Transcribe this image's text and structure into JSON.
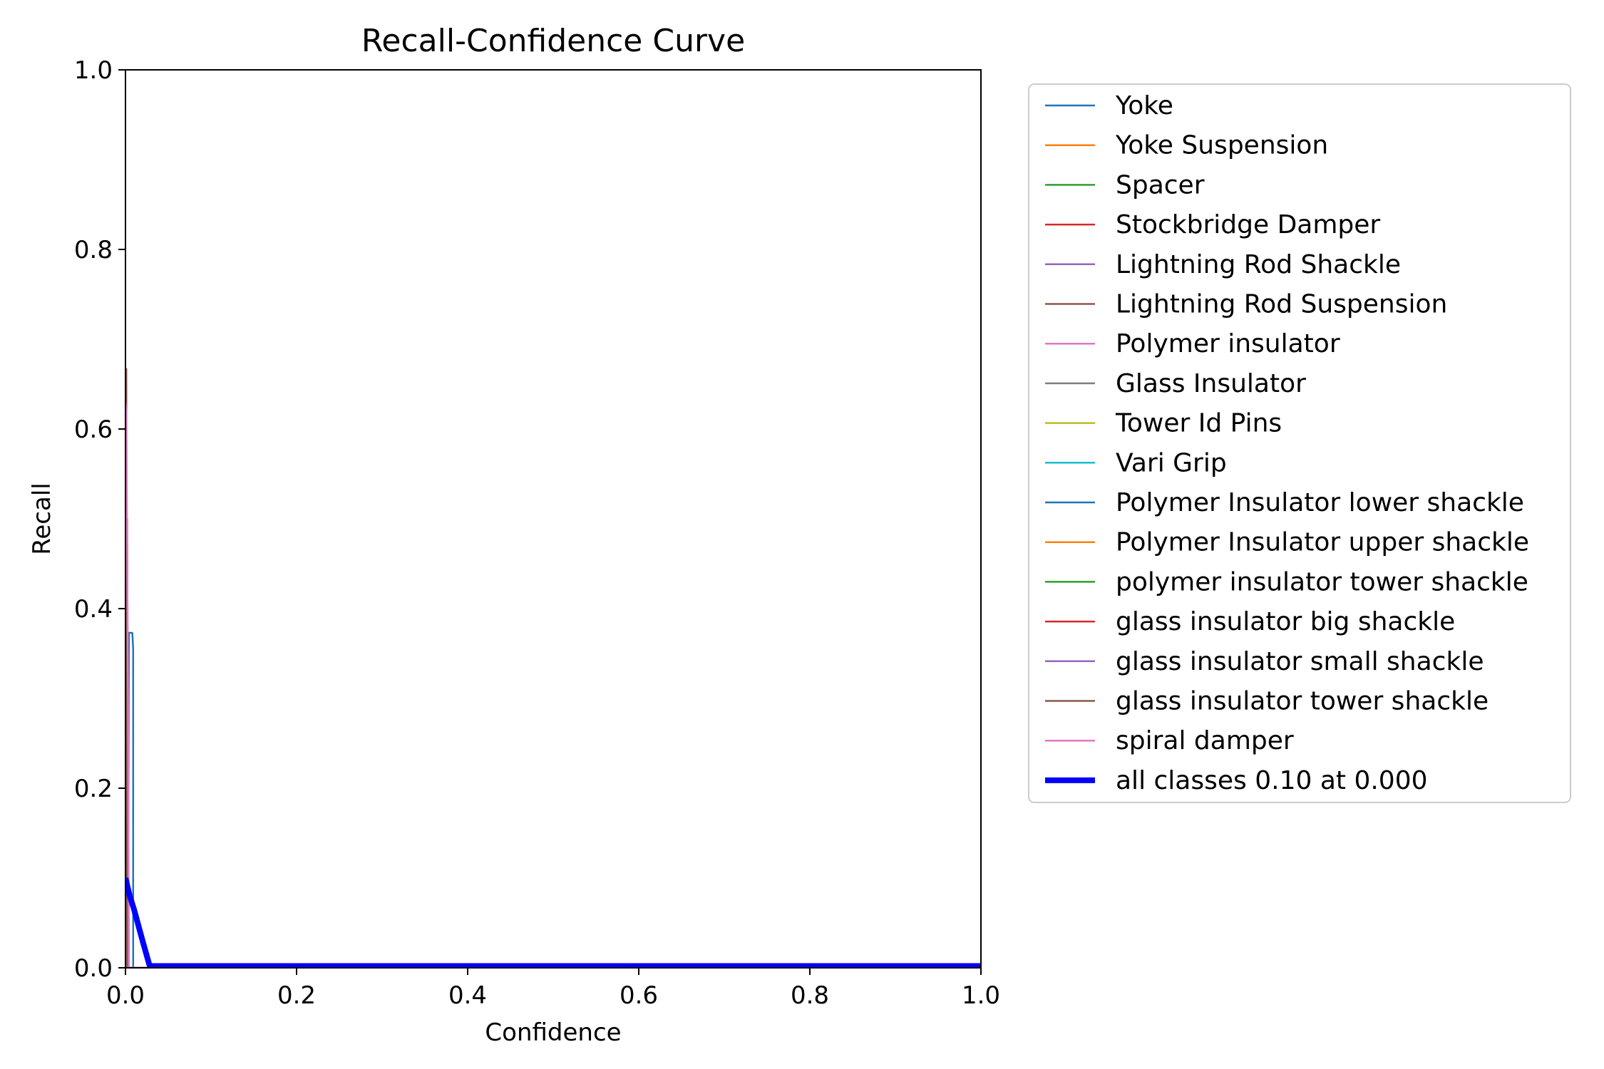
{
  "chart_data": {
    "type": "line",
    "title": "Recall-Confidence Curve",
    "xlabel": "Confidence",
    "ylabel": "Recall",
    "xlim": [
      0,
      1
    ],
    "ylim": [
      0,
      1
    ],
    "xticks": [
      "0.0",
      "0.2",
      "0.4",
      "0.6",
      "0.8",
      "1.0"
    ],
    "yticks": [
      "0.0",
      "0.2",
      "0.4",
      "0.6",
      "0.8",
      "1.0"
    ],
    "grid": false,
    "legend_position": "outside right",
    "series": [
      {
        "name": "Yoke",
        "color": "#1f77b4",
        "width": 1,
        "x": [
          0,
          0.003,
          0.004,
          0.008,
          0.009,
          0.009,
          0.01,
          1
        ],
        "y": [
          0,
          0,
          0.373,
          0.373,
          0.355,
          0,
          0,
          0
        ]
      },
      {
        "name": "Yoke Suspension",
        "color": "#ff7f0e",
        "width": 1,
        "x": [
          0,
          1
        ],
        "y": [
          0,
          0
        ]
      },
      {
        "name": "Spacer",
        "color": "#2ca02c",
        "width": 1,
        "x": [
          0,
          1
        ],
        "y": [
          0,
          0
        ]
      },
      {
        "name": "Stockbridge Damper",
        "color": "#d62728",
        "width": 1,
        "x": [
          0,
          0.002,
          0.003,
          0.004,
          1
        ],
        "y": [
          0,
          0.5,
          0.2,
          0,
          0
        ]
      },
      {
        "name": "Lightning Rod Shackle",
        "color": "#9467bd",
        "width": 1,
        "x": [
          0,
          1
        ],
        "y": [
          0,
          0
        ]
      },
      {
        "name": "Lightning Rod Suspension",
        "color": "#8c564b",
        "width": 1,
        "x": [
          0,
          0.001,
          0.002,
          1
        ],
        "y": [
          0.667,
          0.667,
          0,
          0
        ]
      },
      {
        "name": "Polymer insulator",
        "color": "#e377c2",
        "width": 1,
        "x": [
          0,
          0.001,
          0.003,
          0.004,
          1
        ],
        "y": [
          0.63,
          0.62,
          0.3,
          0,
          0
        ]
      },
      {
        "name": "Glass Insulator",
        "color": "#7f7f7f",
        "width": 1,
        "x": [
          0,
          1
        ],
        "y": [
          0,
          0
        ]
      },
      {
        "name": "Tower Id Pins",
        "color": "#bcbd22",
        "width": 1,
        "x": [
          0,
          1
        ],
        "y": [
          0,
          0
        ]
      },
      {
        "name": "Vari Grip",
        "color": "#17becf",
        "width": 1,
        "x": [
          0,
          1
        ],
        "y": [
          0,
          0
        ]
      },
      {
        "name": "Polymer Insulator lower shackle",
        "color": "#1f77b4",
        "width": 1,
        "x": [
          0,
          1
        ],
        "y": [
          0,
          0
        ]
      },
      {
        "name": "Polymer Insulator upper shackle",
        "color": "#ff7f0e",
        "width": 1,
        "x": [
          0,
          1
        ],
        "y": [
          0,
          0
        ]
      },
      {
        "name": "polymer insulator tower shackle",
        "color": "#2ca02c",
        "width": 1,
        "x": [
          0,
          1
        ],
        "y": [
          0,
          0
        ]
      },
      {
        "name": "glass insulator big shackle",
        "color": "#d62728",
        "width": 1,
        "x": [
          0,
          1
        ],
        "y": [
          0,
          0
        ]
      },
      {
        "name": "glass insulator small shackle",
        "color": "#9467bd",
        "width": 1,
        "x": [
          0,
          1
        ],
        "y": [
          0,
          0
        ]
      },
      {
        "name": "glass insulator tower shackle",
        "color": "#8c564b",
        "width": 1,
        "x": [
          0,
          1
        ],
        "y": [
          0,
          0
        ]
      },
      {
        "name": "spiral damper",
        "color": "#e377c2",
        "width": 1,
        "x": [
          0,
          1
        ],
        "y": [
          0,
          0
        ]
      },
      {
        "name": "all classes 0.10 at 0.000",
        "color": "#0000ff",
        "width": 3,
        "x": [
          0,
          0.005,
          0.01,
          0.02,
          0.028,
          0.03,
          1
        ],
        "y": [
          0.1,
          0.08,
          0.065,
          0.03,
          0.003,
          0.002,
          0.002
        ]
      }
    ]
  }
}
